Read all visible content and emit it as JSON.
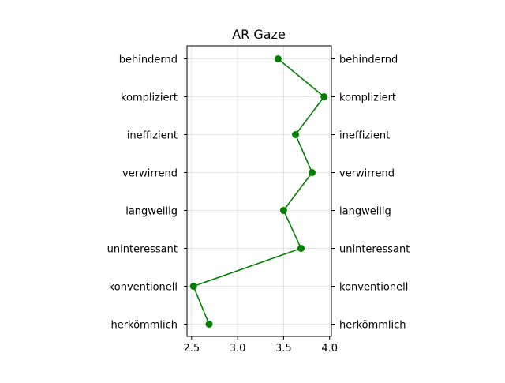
{
  "chart_data": {
    "type": "line",
    "title": "AR Gaze",
    "orientation": "horizontal-profile",
    "xlabel": "",
    "ylabel": "",
    "xlim": [
      2.45,
      4.02
    ],
    "x_ticks": [
      "2.5",
      "3.0",
      "3.5",
      "4.0"
    ],
    "x_tick_values": [
      2.5,
      3.0,
      3.5,
      4.0
    ],
    "categories": [
      "behindernd",
      "kompliziert",
      "ineffizient",
      "verwirrend",
      "langweilig",
      "uninteressant",
      "konventionell",
      "herkömmlich"
    ],
    "right_categories": [
      "behindernd",
      "kompliziert",
      "ineffizient",
      "verwirrend",
      "langweilig",
      "uninteressant",
      "konventionell",
      "herkömmlich"
    ],
    "values": [
      3.44,
      3.94,
      3.63,
      3.81,
      3.5,
      3.69,
      2.52,
      2.69
    ],
    "series_color": "#008000",
    "grid": true,
    "legend": "none"
  }
}
